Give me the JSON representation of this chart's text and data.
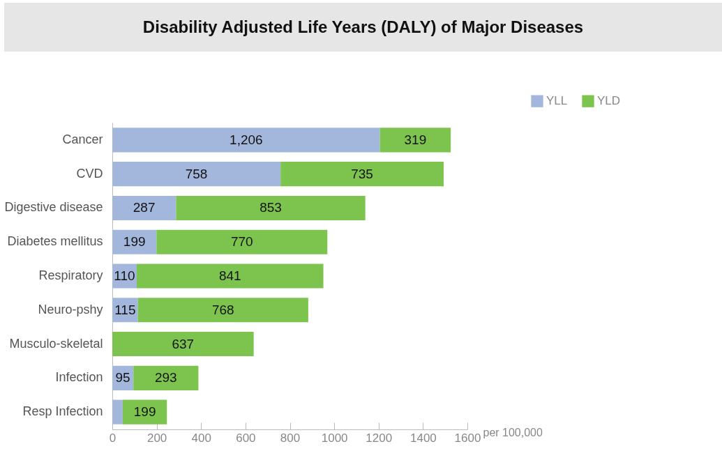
{
  "chart_data": {
    "type": "bar",
    "orientation": "horizontal",
    "stacked": true,
    "title": "Disability Adjusted Life Years (DALY) of Major Diseases",
    "xlabel": "per 100,000",
    "categories": [
      "Cancer",
      "CVD",
      "Digestive disease",
      "Diabetes mellitus",
      "Respiratory",
      "Neuro-pshy",
      "Musculo-skeletal",
      "Infection",
      "Resp Infection"
    ],
    "series": [
      {
        "name": "YLL",
        "color": "#a3b7dc",
        "values": [
          1206,
          758,
          287,
          199,
          110,
          115,
          null,
          95,
          47
        ],
        "value_labels": [
          "1,206",
          "758",
          "287",
          "199",
          "110",
          "115",
          null,
          "95",
          null
        ]
      },
      {
        "name": "YLD",
        "color": "#7dc44e",
        "values": [
          319,
          735,
          853,
          770,
          841,
          768,
          637,
          293,
          199
        ],
        "value_labels": [
          "319",
          "735",
          "853",
          "770",
          "841",
          "768",
          "637",
          "293",
          "199"
        ]
      }
    ],
    "xlim": [
      0,
      1600
    ],
    "xticks": [
      0,
      200,
      400,
      600,
      800,
      1000,
      1200,
      1400,
      1600
    ],
    "legend": "top right",
    "grid": false
  }
}
